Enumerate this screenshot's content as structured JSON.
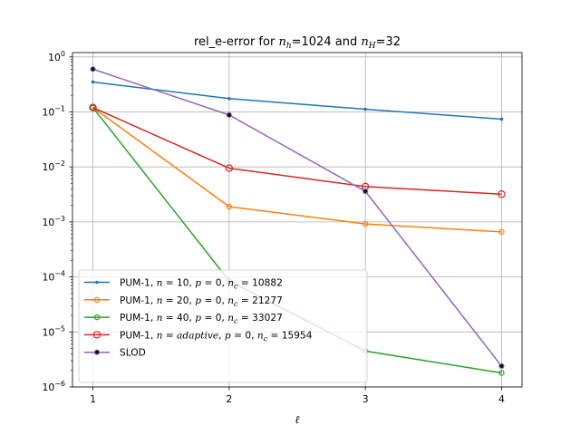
{
  "chart_data": {
    "type": "line",
    "title": "rel_e-error for n_h=1024 and n_H=32",
    "title_parts": {
      "prefix": "rel_e-error for ",
      "var1_base": "n",
      "var1_sub": "h",
      "var1_value": "=1024",
      "middle": " and ",
      "var2_base": "n",
      "var2_sub": "H",
      "var2_value": "=32"
    },
    "xlabel": "ℓ",
    "ylabel": "",
    "x": [
      1,
      2,
      3,
      4
    ],
    "x_tick_labels": [
      "1",
      "2",
      "3",
      "4"
    ],
    "xlim": [
      0.85,
      4.15
    ],
    "yscale": "log",
    "ylim": [
      1e-06,
      1.2
    ],
    "y_ticks": [
      {
        "value": 1e-06,
        "base": "10",
        "exp": "−6"
      },
      {
        "value": 1e-05,
        "base": "10",
        "exp": "−5"
      },
      {
        "value": 0.0001,
        "base": "10",
        "exp": "−4"
      },
      {
        "value": 0.001,
        "base": "10",
        "exp": "−3"
      },
      {
        "value": 0.01,
        "base": "10",
        "exp": "−2"
      },
      {
        "value": 0.1,
        "base": "10",
        "exp": "−1"
      },
      {
        "value": 1,
        "base": "10",
        "exp": "0"
      }
    ],
    "grid": true,
    "legend_position": "lower-left",
    "series": [
      {
        "name": "PUM-1, n=10, p=0, n_c=10882",
        "legend": {
          "a": "PUM-1, ",
          "n_eq": "10",
          "p_eq": "0",
          "nc_eq": "10882",
          "n_italic": false
        },
        "color": "#1f77b4",
        "marker": "dot",
        "values": [
          0.35,
          0.175,
          0.112,
          0.074
        ]
      },
      {
        "name": "PUM-1, n=20, p=0, n_c=21277",
        "legend": {
          "a": "PUM-1, ",
          "n_eq": "20",
          "p_eq": "0",
          "nc_eq": "21277",
          "n_italic": false
        },
        "color": "#ff7f0e",
        "marker": "open-small",
        "values": [
          0.12,
          0.0019,
          0.00092,
          0.00066
        ]
      },
      {
        "name": "PUM-1, n=40, p=0, n_c=33027",
        "legend": {
          "a": "PUM-1, ",
          "n_eq": "40",
          "p_eq": "0",
          "nc_eq": "33027",
          "n_italic": false
        },
        "color": "#2ca02c",
        "marker": "open-small",
        "values": [
          0.12,
          8.5e-05,
          4.5e-06,
          1.8e-06
        ]
      },
      {
        "name": "PUM-1, n=adaptive, p=0, n_c=15954",
        "legend": {
          "a": "PUM-1, ",
          "n_eq": "adaptive",
          "p_eq": "0",
          "nc_eq": "15954",
          "n_italic": true
        },
        "color": "#d62728",
        "marker": "open-large",
        "values": [
          0.12,
          0.0095,
          0.0044,
          0.0032
        ]
      },
      {
        "name": "SLOD",
        "legend": {
          "plain": "SLOD"
        },
        "color": "#9467bd",
        "marker": "black-dot",
        "values": [
          0.6,
          0.088,
          0.0036,
          2.4e-06
        ]
      }
    ]
  }
}
